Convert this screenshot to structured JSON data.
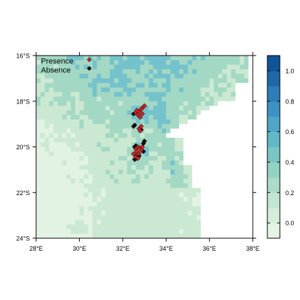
{
  "map": {
    "x_ticks": [
      "28°E",
      "30°E",
      "32°E",
      "34°E",
      "36°E",
      "38°E"
    ],
    "y_ticks": [
      "16°S",
      "18°S",
      "20°S",
      "22°S",
      "24°S"
    ],
    "lon_range": [
      28,
      38
    ],
    "lat_range": [
      -24,
      -16
    ],
    "legend": {
      "presence_label": "Presence",
      "absence_label": "Absence",
      "presence_color": "#d62728",
      "absence_color": "#111111",
      "placement": "top-left"
    },
    "colorbar": {
      "ticks": [
        "0.0",
        "0.2",
        "0.4",
        "0.6",
        "0.8",
        "1.0"
      ],
      "range": [
        -0.1,
        1.1
      ],
      "bins": [
        {
          "from": -0.1,
          "to": 0.1,
          "color": "#e2f2e3"
        },
        {
          "from": 0.1,
          "to": 0.3,
          "color": "#cbe9d2"
        },
        {
          "from": 0.3,
          "to": 0.5,
          "color": "#a3d8c4"
        },
        {
          "from": 0.5,
          "to": 0.7,
          "color": "#74c2cc"
        },
        {
          "from": 0.7,
          "to": 0.9,
          "color": "#4aa5cf"
        },
        {
          "from": 0.9,
          "to": 1.1,
          "color": "#2874ae"
        }
      ],
      "step_colors": [
        "#e3f3e4",
        "#d4eedb",
        "#c3e6d2",
        "#aadcc8",
        "#92d2c3",
        "#7ac6c4",
        "#62b8c8",
        "#4ea6c9",
        "#3d92c4",
        "#2d7db8",
        "#1e68a8",
        "#0f5596"
      ]
    },
    "ocean_color": "#ffffff"
  },
  "chart_data": {
    "type": "scatter",
    "title": "",
    "xlabel": "",
    "ylabel": "",
    "xlim": [
      28,
      38
    ],
    "ylim": [
      -24,
      -16
    ],
    "x_unit": "degrees longitude (east)",
    "y_unit": "degrees latitude (negative = south)",
    "series": [
      {
        "name": "Presence",
        "points": [
          [
            32.6,
            -18.5
          ],
          [
            32.75,
            -18.45
          ],
          [
            32.85,
            -18.35
          ],
          [
            32.95,
            -18.25
          ],
          [
            32.7,
            -18.6
          ],
          [
            32.8,
            -18.7
          ],
          [
            32.9,
            -18.55
          ],
          [
            32.65,
            -18.4
          ],
          [
            33.0,
            -18.2
          ],
          [
            32.75,
            -19.2
          ],
          [
            32.8,
            -19.3
          ],
          [
            32.85,
            -19.1
          ],
          [
            32.7,
            -20.0
          ],
          [
            32.8,
            -20.05
          ],
          [
            32.6,
            -20.1
          ],
          [
            32.65,
            -20.2
          ],
          [
            32.75,
            -20.3
          ],
          [
            32.55,
            -20.35
          ],
          [
            32.6,
            -20.45
          ],
          [
            32.85,
            -20.15
          ],
          [
            32.7,
            -20.5
          ],
          [
            32.9,
            -20.0
          ],
          [
            32.5,
            -20.3
          ]
        ]
      },
      {
        "name": "Absence",
        "points": [
          [
            32.5,
            -18.55
          ],
          [
            32.55,
            -19.05
          ],
          [
            32.5,
            -19.1
          ],
          [
            32.85,
            -19.25
          ],
          [
            33.0,
            -19.75
          ],
          [
            32.95,
            -19.85
          ],
          [
            32.55,
            -20.0
          ],
          [
            32.6,
            -19.95
          ],
          [
            32.65,
            -20.5
          ],
          [
            32.55,
            -20.55
          ],
          [
            32.95,
            -20.2
          ],
          [
            32.75,
            -20.4
          ]
        ]
      }
    ]
  }
}
